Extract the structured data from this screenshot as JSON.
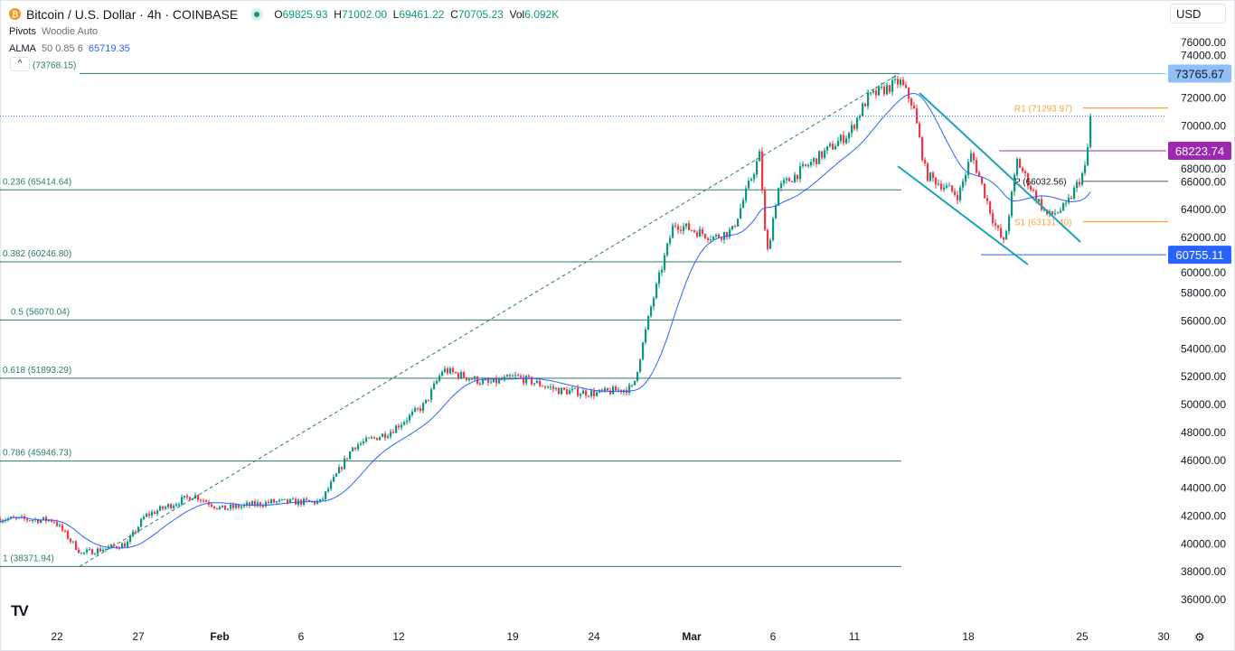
{
  "header": {
    "symbol": "Bitcoin / U.S. Dollar · 4h · COINBASE",
    "coin_glyph": "₿",
    "ohlc": {
      "o_label": "O",
      "o": "69825.93",
      "h_label": "H",
      "h": "71002.00",
      "l_label": "L",
      "l": "69461.22",
      "c_label": "C",
      "c": "70705.23",
      "vol_label": "Vol",
      "vol": "6.092K"
    },
    "indicators": [
      {
        "name": "Pivots",
        "params": "Woodie Auto"
      },
      {
        "name": "ALMA",
        "params": "50 0.85 6",
        "value": "65719.35"
      }
    ],
    "collapse_glyph": "^",
    "currency": "USD"
  },
  "colors": {
    "up": "#089981",
    "down": "#f23645",
    "alma": "#2962ff",
    "fib": "#2a7a6a",
    "channel": "#1ba3b8",
    "pivot_rs": "#f7a63b",
    "pivot_p": "#787b86",
    "purple": "#9c27b0",
    "blue_label": "#2962ff",
    "light_blue": "#90bff9"
  },
  "chart_data": {
    "type": "candlestick",
    "title": "Bitcoin / U.S. Dollar · 4h · COINBASE",
    "timeframe": "4h",
    "price_path": [
      [
        -3.5,
        41800
      ],
      [
        -0.2,
        41700
      ],
      [
        1.5,
        39300
      ],
      [
        4.3,
        40000
      ],
      [
        5.4,
        42000
      ],
      [
        8.4,
        43500
      ],
      [
        10.1,
        42500
      ],
      [
        13.2,
        43000
      ],
      [
        16.2,
        43000
      ],
      [
        18.2,
        47000
      ],
      [
        20.4,
        48000
      ],
      [
        22.6,
        50000
      ],
      [
        23.7,
        52500
      ],
      [
        26.5,
        51500
      ],
      [
        28.2,
        52000
      ],
      [
        30.9,
        51000
      ],
      [
        33.2,
        50800
      ],
      [
        35.4,
        51200
      ],
      [
        36.5,
        57000
      ],
      [
        37.9,
        63000
      ],
      [
        40.4,
        62000
      ],
      [
        41.5,
        62500
      ],
      [
        43.2,
        68000
      ],
      [
        43.6,
        60500
      ],
      [
        44.3,
        65500
      ],
      [
        46.5,
        67500
      ],
      [
        48.7,
        69500
      ],
      [
        49.8,
        72000
      ],
      [
        51.8,
        73200
      ],
      [
        52.6,
        71500
      ],
      [
        53.4,
        66500
      ],
      [
        55.4,
        65000
      ],
      [
        56.2,
        68000
      ],
      [
        57.6,
        63000
      ],
      [
        58.2,
        61500
      ],
      [
        59.0,
        67500
      ],
      [
        60.1,
        65000
      ],
      [
        60.9,
        63500
      ],
      [
        62.0,
        64200
      ],
      [
        63.2,
        67000
      ],
      [
        63.55,
        70705
      ]
    ],
    "x_axis_note": "days since Jan 22",
    "xticks": [
      {
        "d": 0,
        "label": "22"
      },
      {
        "d": 5,
        "label": "27"
      },
      {
        "d": 10,
        "label": "Feb",
        "bold": true
      },
      {
        "d": 15,
        "label": "6"
      },
      {
        "d": 21,
        "label": "12"
      },
      {
        "d": 28,
        "label": "19"
      },
      {
        "d": 33,
        "label": "24"
      },
      {
        "d": 39,
        "label": "Mar",
        "bold": true
      },
      {
        "d": 44,
        "label": "6"
      },
      {
        "d": 49,
        "label": "11"
      },
      {
        "d": 56,
        "label": "18"
      },
      {
        "d": 63,
        "label": "25"
      },
      {
        "d": 68,
        "label": "30"
      }
    ],
    "yticks": [
      "76000.00",
      "74000.00",
      "72000.00",
      "70000.00",
      "68000.00",
      "66000.00",
      "64000.00",
      "62000.00",
      "60000.00",
      "58000.00",
      "56000.00",
      "54000.00",
      "52000.00",
      "50000.00",
      "48000.00",
      "46000.00",
      "44000.00",
      "42000.00",
      "40000.00",
      "38000.00",
      "36000.00"
    ],
    "ylim": [
      36000,
      76000
    ],
    "fib_levels": [
      {
        "ratio": 0,
        "price": 73768.15,
        "label": "(73768.15)"
      },
      {
        "ratio": 0.236,
        "price": 65414.64,
        "label": "0.236 (65414.64)"
      },
      {
        "ratio": 0.382,
        "price": 60246.8,
        "label": "0.382 (60246.80)"
      },
      {
        "ratio": 0.5,
        "price": 56070.04,
        "label": "0.5 (56070.04)"
      },
      {
        "ratio": 0.618,
        "price": 51893.29,
        "label": "0.618 (51893.29)"
      },
      {
        "ratio": 0.786,
        "price": 45946.73,
        "label": "0.786 (45946.73)"
      },
      {
        "ratio": 1,
        "price": 38371.94,
        "label": "1 (38371.94)"
      }
    ],
    "pivots": [
      {
        "name": "R1",
        "price": 71293.97,
        "label": "R1 (71293.97)"
      },
      {
        "name": "P",
        "price": 66032.56,
        "label": "P (66032.56)"
      },
      {
        "name": "S1",
        "price": 63131.4,
        "label": "S1 (63131.40)"
      }
    ],
    "price_labels": [
      {
        "price": 73765.67,
        "label": "73765.67",
        "style": "light_blue"
      },
      {
        "price": 68223.74,
        "label": "68223.74",
        "style": "purple"
      },
      {
        "price": 60755.11,
        "label": "60755.11",
        "style": "blue_label"
      }
    ],
    "last_price": 70705.23
  },
  "footer": {
    "logo": "TV",
    "settings_glyph": "⚙"
  }
}
